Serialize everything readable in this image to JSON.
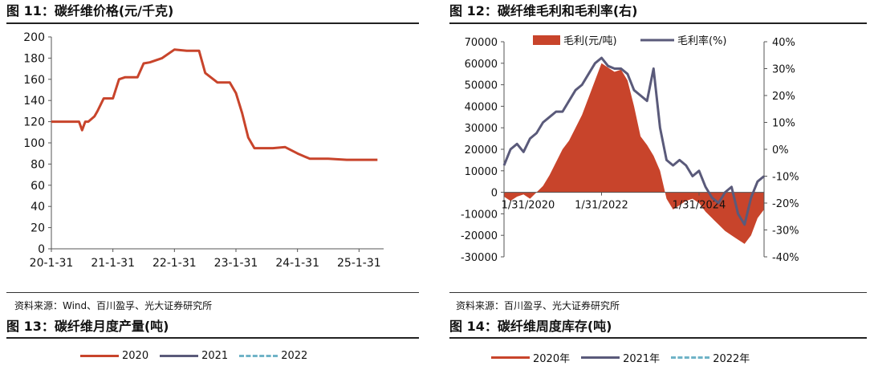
{
  "fig11": {
    "title": "图 11：碳纤维价格(元/千克)",
    "source": "资料来源：Wind、百川盈孚、光大证券研究所",
    "chart_data": {
      "type": "line",
      "y_ticks": [
        "200",
        "180",
        "160",
        "140",
        "120",
        "100",
        "80",
        "60",
        "40",
        "20",
        "0"
      ],
      "x_ticks": [
        "20-1-31",
        "21-1-31",
        "22-1-31",
        "23-1-31",
        "24-1-31",
        "25-1-31"
      ],
      "ylim": [
        0,
        200
      ],
      "color": "#c8442b",
      "series": [
        {
          "x": [
            0,
            0.45,
            0.5,
            0.55,
            0.6,
            0.7,
            0.75,
            0.85,
            1.0,
            1.1,
            1.2,
            1.4,
            1.5,
            1.6,
            1.8,
            2.0,
            2.2,
            2.4,
            2.5,
            2.7,
            2.9,
            3.0,
            3.1,
            3.2,
            3.3,
            3.4,
            3.6,
            3.8,
            4.0,
            4.2,
            4.5,
            4.8,
            5.0,
            5.3
          ],
          "y": [
            120,
            120,
            112,
            120,
            120,
            125,
            130,
            142,
            142,
            160,
            162,
            162,
            175,
            176,
            180,
            188,
            187,
            187,
            166,
            157,
            157,
            147,
            128,
            105,
            95,
            95,
            95,
            96,
            90,
            85,
            85,
            84,
            84,
            84
          ]
        }
      ]
    }
  },
  "fig12": {
    "title": "图 12：碳纤维毛利和毛利率(右)",
    "source": "资料来源：百川盈孚、光大证券研究所",
    "chart_data": {
      "type": "area",
      "y_left_ticks": [
        "70000",
        "60000",
        "50000",
        "40000",
        "30000",
        "20000",
        "10000",
        "0",
        "-10000",
        "-20000",
        "-30000"
      ],
      "y_right_ticks": [
        "40%",
        "30%",
        "20%",
        "10%",
        "0%",
        "-10%",
        "-20%",
        "-30%",
        "-40%"
      ],
      "x_ticks": [
        "1/31/2020",
        "1/31/2022",
        "1/31/2024"
      ],
      "ylim_left": [
        -30000,
        70000
      ],
      "ylim_right": [
        -40,
        40
      ],
      "legend": [
        {
          "name": "毛利(元/吨)",
          "color": "#c8442b"
        },
        {
          "name": "毛利率(%)",
          "color": "#5a5a7a"
        }
      ],
      "gross_profit": {
        "x": [
          0,
          0.1,
          0.2,
          0.3,
          0.4,
          0.5,
          0.6,
          0.7,
          0.8,
          0.9,
          1.0,
          1.1,
          1.2,
          1.3,
          1.4,
          1.5,
          1.6,
          1.7,
          1.8,
          1.9,
          2.0,
          2.1,
          2.2,
          2.3,
          2.4,
          2.5,
          2.6,
          2.7,
          2.8,
          2.9,
          3.0,
          3.1,
          3.2,
          3.3,
          3.4,
          3.5,
          3.6,
          3.7,
          3.8,
          3.9,
          4.0
        ],
        "y": [
          -2000,
          -4000,
          -2000,
          -1000,
          -3000,
          0,
          3000,
          8000,
          14000,
          20000,
          24000,
          30000,
          36000,
          44000,
          52000,
          60000,
          58000,
          56000,
          57000,
          52000,
          40000,
          26000,
          22000,
          17000,
          10000,
          -3000,
          -8000,
          -6000,
          -4000,
          -3000,
          -5000,
          -9000,
          -12000,
          -15000,
          -18000,
          -20000,
          -22000,
          -24000,
          -20000,
          -12000,
          -8000
        ]
      },
      "gross_margin": {
        "x": [
          0,
          0.1,
          0.2,
          0.3,
          0.4,
          0.5,
          0.6,
          0.7,
          0.8,
          0.9,
          1.0,
          1.1,
          1.2,
          1.3,
          1.4,
          1.5,
          1.6,
          1.7,
          1.8,
          1.9,
          2.0,
          2.1,
          2.2,
          2.3,
          2.4,
          2.5,
          2.6,
          2.7,
          2.8,
          2.9,
          3.0,
          3.1,
          3.2,
          3.3,
          3.4,
          3.5,
          3.6,
          3.7,
          3.8,
          3.9,
          4.0
        ],
        "y": [
          -6,
          0,
          2,
          -1,
          4,
          6,
          10,
          12,
          14,
          14,
          18,
          22,
          24,
          28,
          32,
          34,
          31,
          30,
          30,
          28,
          22,
          20,
          18,
          30,
          8,
          -4,
          -6,
          -4,
          -6,
          -10,
          -8,
          -14,
          -18,
          -20,
          -16,
          -14,
          -24,
          -28,
          -18,
          -12,
          -10
        ]
      }
    }
  },
  "fig13": {
    "title": "图 13：碳纤维月度产量(吨)",
    "legend": [
      {
        "name": "2020",
        "color": "#c8442b",
        "style": "solid"
      },
      {
        "name": "2021",
        "color": "#5a5a7a",
        "style": "solid"
      },
      {
        "name": "2022",
        "color": "#6fb3c7",
        "style": "dash"
      }
    ]
  },
  "fig14": {
    "title": "图 14：碳纤维周度库存(吨)",
    "legend": [
      {
        "name": "2020年",
        "color": "#c8442b",
        "style": "solid"
      },
      {
        "name": "2021年",
        "color": "#5a5a7a",
        "style": "solid"
      },
      {
        "name": "2022年",
        "color": "#6fb3c7",
        "style": "dash"
      }
    ]
  }
}
